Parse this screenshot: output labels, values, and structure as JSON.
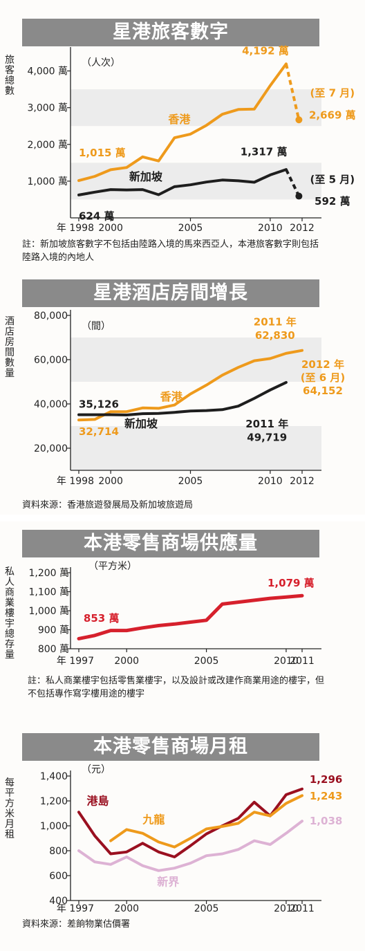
{
  "panels": [
    {
      "title": "星港旅客數字",
      "yaxis_label": "旅客總數",
      "unit": "（人次）",
      "note_prefix": "註：",
      "note_text": "新加坡旅客數字不包括由陸路入境的馬來西亞人，本港旅客數字則包括陸路入境的內地人"
    },
    {
      "title": "星港酒店房間增長",
      "yaxis_label": "酒店房間數量",
      "unit": "（間）",
      "note_prefix": "",
      "note_text": "資料來源：香港旅遊發展局及新加坡旅遊局"
    },
    {
      "title": "本港零售商場供應量",
      "yaxis_label": "私人商業樓宇總存量",
      "unit": "（平方米）",
      "note_prefix": "註：",
      "note_text": "私人商業樓宇包括零售業樓宇，以及設計或改建作商業用途的樓宇，但不包括專作寫字樓用途的樓宇"
    },
    {
      "title": "本港零售商場月租",
      "yaxis_label": "每平方米月租",
      "unit": "（元）",
      "note_prefix": "",
      "note_text": "資料來源：差餉物業估價署"
    }
  ],
  "colors": {
    "hk": "#ee9a1c",
    "sg": "#1e1e1e",
    "supply": "#d6202c",
    "hki": "#9a1020",
    "kln": "#ee9a1c",
    "nt": "#ddb2d4",
    "band": "#8a8a8a"
  },
  "chart_data": [
    {
      "type": "line",
      "title": "星港旅客數字",
      "ylabel": "旅客總數",
      "ylim": [
        0,
        4500
      ],
      "yticks": [
        {
          "v": 1000,
          "t": "1,000 萬"
        },
        {
          "v": 2000,
          "t": "2,000 萬"
        },
        {
          "v": 3000,
          "t": "3,000 萬"
        },
        {
          "v": 4000,
          "t": "4,000 萬"
        }
      ],
      "xlim": [
        1998,
        2012
      ],
      "xticks": [
        {
          "v": 1998,
          "t": "年 1998"
        },
        {
          "v": 2000,
          "t": "2000"
        },
        {
          "v": 2005,
          "t": "2005"
        },
        {
          "v": 2010,
          "t": "2010"
        },
        {
          "v": 2012,
          "t": "2012"
        }
      ],
      "series": [
        {
          "name": "香港",
          "color": "#ee9a1c",
          "width": 4,
          "x": [
            1998,
            1999,
            2000,
            2001,
            2002,
            2003,
            2004,
            2005,
            2006,
            2007,
            2008,
            2009,
            2010,
            2011
          ],
          "y": [
            1015,
            1130,
            1310,
            1370,
            1660,
            1550,
            2180,
            2280,
            2520,
            2820,
            2950,
            2960,
            3600,
            4192
          ],
          "ext": {
            "x": [
              2011,
              2011.8
            ],
            "y": [
              4192,
              2669
            ]
          },
          "labels": [
            {
              "t": "香港",
              "x": 2004.3,
              "y": 2580,
              "c": "#ee9a1c",
              "a": "middle",
              "s": 16
            }
          ]
        },
        {
          "name": "新加坡",
          "color": "#1e1e1e",
          "width": 4,
          "x": [
            1998,
            1999,
            2000,
            2001,
            2002,
            2003,
            2004,
            2005,
            2006,
            2007,
            2008,
            2009,
            2010,
            2011
          ],
          "y": [
            624,
            700,
            770,
            760,
            770,
            630,
            850,
            900,
            975,
            1030,
            1010,
            970,
            1170,
            1317
          ],
          "ext": {
            "x": [
              2011,
              2011.8
            ],
            "y": [
              1317,
              592
            ]
          },
          "labels": [
            {
              "t": "新加坡",
              "x": 2002.2,
              "y": 1020,
              "c": "#1e1e1e",
              "a": "middle",
              "s": 16
            }
          ]
        }
      ],
      "annotations": [
        {
          "t": "1,015 萬",
          "x": 1998.0,
          "y": 1680,
          "c": "#ee9a1c",
          "a": "start",
          "s": 15
        },
        {
          "t": "624 萬",
          "x": 1998.0,
          "y": -50,
          "c": "#1e1e1e",
          "a": "start",
          "s": 15
        },
        {
          "t": "4,192 萬",
          "x": 2009.7,
          "y": 4450,
          "c": "#ee9a1c",
          "a": "middle",
          "s": 15
        },
        {
          "t": "1,317 萬",
          "x": 2009.6,
          "y": 1700,
          "c": "#1e1e1e",
          "a": "middle",
          "s": 15
        },
        {
          "t": "(至 7 月)",
          "x": 2013.9,
          "y": 3300,
          "c": "#ee9a1c",
          "a": "middle",
          "s": 15
        },
        {
          "t": "2,669 萬",
          "x": 2013.9,
          "y": 2700,
          "c": "#ee9a1c",
          "a": "middle",
          "s": 15
        },
        {
          "t": "(至 5 月)",
          "x": 2013.9,
          "y": 950,
          "c": "#1e1e1e",
          "a": "middle",
          "s": 15
        },
        {
          "t": "592 萬",
          "x": 2013.9,
          "y": 360,
          "c": "#1e1e1e",
          "a": "middle",
          "s": 15
        }
      ],
      "end_dots": [
        {
          "x": 2011.8,
          "y": 2669,
          "c": "#ee9a1c"
        },
        {
          "x": 2011.8,
          "y": 592,
          "c": "#1e1e1e"
        }
      ]
    },
    {
      "type": "line",
      "title": "星港酒店房間增長",
      "ylabel": "酒店房間數量",
      "ylim": [
        10000,
        80000
      ],
      "yticks": [
        {
          "v": 20000,
          "t": "20,000"
        },
        {
          "v": 40000,
          "t": "40,000"
        },
        {
          "v": 60000,
          "t": "60,000"
        },
        {
          "v": 80000,
          "t": "80,000"
        }
      ],
      "xlim": [
        1998,
        2012
      ],
      "xticks": [
        {
          "v": 1998,
          "t": "年 1998"
        },
        {
          "v": 2000,
          "t": "2000"
        },
        {
          "v": 2005,
          "t": "2005"
        },
        {
          "v": 2010,
          "t": "2010"
        },
        {
          "v": 2012,
          "t": "2012"
        }
      ],
      "series": [
        {
          "name": "香港",
          "color": "#ee9a1c",
          "width": 4,
          "x": [
            1998,
            1999,
            2000,
            2001,
            2002,
            2003,
            2004,
            2005,
            2006,
            2007,
            2008,
            2009,
            2010,
            2011,
            2012
          ],
          "y": [
            32714,
            33000,
            36500,
            36500,
            38200,
            38000,
            39500,
            44500,
            48500,
            53000,
            56500,
            59500,
            60500,
            62830,
            64152
          ],
          "labels": [
            {
              "t": "香港",
              "x": 2003.8,
              "y": 41500,
              "c": "#ee9a1c",
              "a": "middle",
              "s": 16
            }
          ]
        },
        {
          "name": "新加坡",
          "color": "#1e1e1e",
          "width": 4,
          "x": [
            1998,
            1999,
            2000,
            2001,
            2002,
            2003,
            2004,
            2005,
            2006,
            2007,
            2008,
            2009,
            2010,
            2011
          ],
          "y": [
            35126,
            35126,
            35126,
            35000,
            35600,
            35700,
            36200,
            36800,
            37000,
            37400,
            39000,
            42500,
            46300,
            49719
          ],
          "labels": [
            {
              "t": "新加坡",
              "x": 2001.9,
              "y": 29300,
              "c": "#1e1e1e",
              "a": "middle",
              "s": 16
            }
          ]
        }
      ],
      "annotations": [
        {
          "t": "35,126",
          "x": 1998.0,
          "y": 38300,
          "c": "#1e1e1e",
          "a": "start",
          "s": 15
        },
        {
          "t": "32,714",
          "x": 1998.0,
          "y": 26000,
          "c": "#ee9a1c",
          "a": "start",
          "s": 15
        },
        {
          "t": "2011 年",
          "x": 2010.3,
          "y": 75500,
          "c": "#ee9a1c",
          "a": "middle",
          "s": 15
        },
        {
          "t": "62,830",
          "x": 2010.3,
          "y": 69300,
          "c": "#ee9a1c",
          "a": "middle",
          "s": 15
        },
        {
          "t": "2012 年",
          "x": 2013.3,
          "y": 56200,
          "c": "#ee9a1c",
          "a": "middle",
          "s": 15
        },
        {
          "t": "(至 6 月)",
          "x": 2013.3,
          "y": 50300,
          "c": "#ee9a1c",
          "a": "middle",
          "s": 15
        },
        {
          "t": "64,152",
          "x": 2013.3,
          "y": 44400,
          "c": "#ee9a1c",
          "a": "middle",
          "s": 15
        },
        {
          "t": "2011 年",
          "x": 2009.8,
          "y": 29300,
          "c": "#1e1e1e",
          "a": "middle",
          "s": 15
        },
        {
          "t": "49,719",
          "x": 2009.8,
          "y": 23300,
          "c": "#1e1e1e",
          "a": "middle",
          "s": 15
        }
      ],
      "end_dots": []
    },
    {
      "type": "line",
      "title": "本港零售商場供應量",
      "ylabel": "私人商業樓宇總存量",
      "ylim": [
        800,
        1200
      ],
      "yticks": [
        {
          "v": 800,
          "t": "800 萬"
        },
        {
          "v": 900,
          "t": "900 萬"
        },
        {
          "v": 1000,
          "t": "1,000 萬"
        },
        {
          "v": 1100,
          "t": "1,100 萬"
        },
        {
          "v": 1200,
          "t": "1,200 萬"
        }
      ],
      "xlim": [
        1997,
        2011
      ],
      "xticks": [
        {
          "v": 1997,
          "t": "年 1997"
        },
        {
          "v": 2000,
          "t": "2000"
        },
        {
          "v": 2005,
          "t": "2005"
        },
        {
          "v": 2010,
          "t": "2010"
        },
        {
          "v": 2011,
          "t": "2011"
        }
      ],
      "series": [
        {
          "name": "",
          "color": "#d6202c",
          "width": 5,
          "x": [
            1997,
            1998,
            1999,
            2000,
            2001,
            2002,
            2003,
            2004,
            2005,
            2006,
            2007,
            2008,
            2009,
            2010,
            2011
          ],
          "y": [
            853,
            870,
            896,
            896,
            910,
            922,
            930,
            940,
            950,
            1035,
            1045,
            1055,
            1065,
            1072,
            1079
          ],
          "labels": []
        }
      ],
      "annotations": [
        {
          "t": "853 萬",
          "x": 1997.3,
          "y": 942,
          "c": "#d6202c",
          "a": "start",
          "s": 15
        },
        {
          "t": "1,079 萬",
          "x": 2010.3,
          "y": 1128,
          "c": "#d6202c",
          "a": "middle",
          "s": 15
        }
      ],
      "end_dots": []
    },
    {
      "type": "line",
      "title": "本港零售商場月租",
      "ylabel": "每平方米月租",
      "ylim": [
        400,
        1400
      ],
      "yticks": [
        {
          "v": 400,
          "t": "400"
        },
        {
          "v": 600,
          "t": "600"
        },
        {
          "v": 800,
          "t": "800"
        },
        {
          "v": 1000,
          "t": "1,000"
        },
        {
          "v": 1200,
          "t": "1,200"
        },
        {
          "v": 1400,
          "t": "1,400"
        }
      ],
      "xlim": [
        1997,
        2011
      ],
      "xticks": [
        {
          "v": 1997,
          "t": "年 1997"
        },
        {
          "v": 2000,
          "t": "2000"
        },
        {
          "v": 2005,
          "t": "2005"
        },
        {
          "v": 2010,
          "t": "2010"
        },
        {
          "v": 2011,
          "t": "2011"
        }
      ],
      "series": [
        {
          "name": "港島",
          "color": "#9a1020",
          "width": 4,
          "x": [
            1997,
            1998,
            1999,
            2000,
            2001,
            2002,
            2003,
            2004,
            2005,
            2006,
            2007,
            2008,
            2009,
            2010,
            2011
          ],
          "y": [
            1110,
            920,
            775,
            790,
            860,
            790,
            750,
            840,
            935,
            1000,
            1060,
            1190,
            1080,
            1250,
            1296
          ],
          "labels": [
            {
              "t": "港島",
              "x": 1997.5,
              "y": 1170,
              "c": "#9a1020",
              "a": "start",
              "s": 16
            }
          ]
        },
        {
          "name": "九龍",
          "color": "#ee9a1c",
          "width": 4,
          "x": [
            1999,
            2000,
            2001,
            2002,
            2003,
            2004,
            2005,
            2006,
            2007,
            2008,
            2009,
            2010,
            2011
          ],
          "y": [
            880,
            970,
            940,
            870,
            830,
            900,
            975,
            995,
            1020,
            1110,
            1080,
            1180,
            1243
          ],
          "labels": [
            {
              "t": "九龍",
              "x": 2001.7,
              "y": 1020,
              "c": "#ee9a1c",
              "a": "middle",
              "s": 16
            }
          ]
        },
        {
          "name": "新界",
          "color": "#ddb2d4",
          "width": 4,
          "x": [
            1997,
            1998,
            1999,
            2000,
            2001,
            2002,
            2003,
            2004,
            2005,
            2006,
            2007,
            2008,
            2009,
            2010,
            2011
          ],
          "y": [
            800,
            710,
            690,
            750,
            680,
            640,
            660,
            700,
            760,
            775,
            810,
            880,
            850,
            940,
            1038
          ],
          "labels": [
            {
              "t": "新界",
              "x": 2002.6,
              "y": 520,
              "c": "#ddb2d4",
              "a": "middle",
              "s": 16
            }
          ]
        }
      ],
      "annotations": [
        {
          "t": "1,296",
          "x": 2012.5,
          "y": 1345,
          "c": "#9a1020",
          "a": "middle",
          "s": 15
        },
        {
          "t": "1,243",
          "x": 2012.5,
          "y": 1210,
          "c": "#ee9a1c",
          "a": "middle",
          "s": 15
        },
        {
          "t": "1,038",
          "x": 2012.5,
          "y": 1010,
          "c": "#ddb2d4",
          "a": "middle",
          "s": 15
        }
      ],
      "end_dots": []
    }
  ]
}
